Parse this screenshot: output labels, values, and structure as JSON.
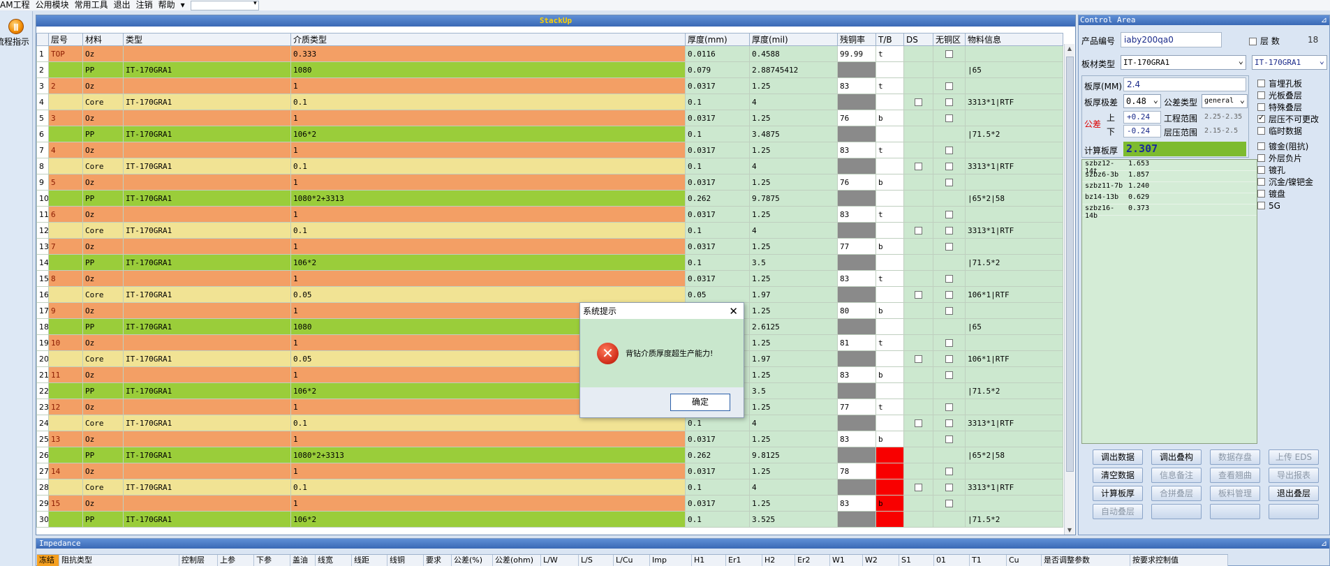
{
  "menubar": {
    "items": [
      "AM工程",
      "公用模块",
      "常用工具",
      "退出",
      "注销",
      "帮助"
    ],
    "combo_value": ""
  },
  "sidebar": {
    "flow_label": "流程指示"
  },
  "stackup": {
    "title": "StackUp",
    "columns": [
      "",
      "层号",
      "材料",
      "类型",
      "介质类型",
      "厚度(mm)",
      "厚度(mil)",
      "残铜率",
      "T/B",
      "DS",
      "无铜区",
      "物料信息"
    ],
    "rows": [
      {
        "n": "1",
        "layer": "TOP",
        "mat": "Oz",
        "type": "",
        "diel": "0.333",
        "mm": "0.0116",
        "mil": "0.4588",
        "res": "99.99",
        "res_gray": false,
        "tb": "t",
        "tb_red": false,
        "ds": false,
        "none": true,
        "info": "",
        "kind": "oz"
      },
      {
        "n": "2",
        "layer": "",
        "mat": "PP",
        "type": "IT-170GRA1",
        "diel": "1080",
        "mm": "0.079",
        "mil": "2.88745412",
        "res": "",
        "res_gray": true,
        "tb": "",
        "tb_red": false,
        "ds": false,
        "none": false,
        "info": "|65",
        "kind": "pp"
      },
      {
        "n": "3",
        "layer": "2",
        "mat": "Oz",
        "type": "",
        "diel": "1",
        "mm": "0.0317",
        "mil": "1.25",
        "res": "83",
        "res_gray": false,
        "tb": "t",
        "tb_red": false,
        "ds": false,
        "none": true,
        "info": "",
        "kind": "oz"
      },
      {
        "n": "4",
        "layer": "",
        "mat": "Core",
        "type": "IT-170GRA1",
        "diel": "0.1",
        "mm": "0.1",
        "mil": "4",
        "res": "",
        "res_gray": true,
        "tb": "",
        "tb_red": false,
        "ds": true,
        "none": true,
        "info": "3313*1|RTF",
        "kind": "core"
      },
      {
        "n": "5",
        "layer": "3",
        "mat": "Oz",
        "type": "",
        "diel": "1",
        "mm": "0.0317",
        "mil": "1.25",
        "res": "76",
        "res_gray": false,
        "tb": "b",
        "tb_red": false,
        "ds": false,
        "none": true,
        "info": "",
        "kind": "oz"
      },
      {
        "n": "6",
        "layer": "",
        "mat": "PP",
        "type": "IT-170GRA1",
        "diel": "106*2",
        "mm": "0.1",
        "mil": "3.4875",
        "res": "",
        "res_gray": true,
        "tb": "",
        "tb_red": false,
        "ds": false,
        "none": false,
        "info": "|71.5*2",
        "kind": "pp"
      },
      {
        "n": "7",
        "layer": "4",
        "mat": "Oz",
        "type": "",
        "diel": "1",
        "mm": "0.0317",
        "mil": "1.25",
        "res": "83",
        "res_gray": false,
        "tb": "t",
        "tb_red": false,
        "ds": false,
        "none": true,
        "info": "",
        "kind": "oz"
      },
      {
        "n": "8",
        "layer": "",
        "mat": "Core",
        "type": "IT-170GRA1",
        "diel": "0.1",
        "mm": "0.1",
        "mil": "4",
        "res": "",
        "res_gray": true,
        "tb": "",
        "tb_red": false,
        "ds": true,
        "none": true,
        "info": "3313*1|RTF",
        "kind": "core"
      },
      {
        "n": "9",
        "layer": "5",
        "mat": "Oz",
        "type": "",
        "diel": "1",
        "mm": "0.0317",
        "mil": "1.25",
        "res": "76",
        "res_gray": false,
        "tb": "b",
        "tb_red": false,
        "ds": false,
        "none": true,
        "info": "",
        "kind": "oz"
      },
      {
        "n": "10",
        "layer": "",
        "mat": "PP",
        "type": "IT-170GRA1",
        "diel": "1080*2+3313",
        "mm": "0.262",
        "mil": "9.7875",
        "res": "",
        "res_gray": true,
        "tb": "",
        "tb_red": false,
        "ds": false,
        "none": false,
        "info": "|65*2|58",
        "kind": "pp"
      },
      {
        "n": "11",
        "layer": "6",
        "mat": "Oz",
        "type": "",
        "diel": "1",
        "mm": "0.0317",
        "mil": "1.25",
        "res": "83",
        "res_gray": false,
        "tb": "t",
        "tb_red": false,
        "ds": false,
        "none": true,
        "info": "",
        "kind": "oz"
      },
      {
        "n": "12",
        "layer": "",
        "mat": "Core",
        "type": "IT-170GRA1",
        "diel": "0.1",
        "mm": "0.1",
        "mil": "4",
        "res": "",
        "res_gray": true,
        "tb": "",
        "tb_red": false,
        "ds": true,
        "none": true,
        "info": "3313*1|RTF",
        "kind": "core"
      },
      {
        "n": "13",
        "layer": "7",
        "mat": "Oz",
        "type": "",
        "diel": "1",
        "mm": "0.0317",
        "mil": "1.25",
        "res": "77",
        "res_gray": false,
        "tb": "b",
        "tb_red": false,
        "ds": false,
        "none": true,
        "info": "",
        "kind": "oz"
      },
      {
        "n": "14",
        "layer": "",
        "mat": "PP",
        "type": "IT-170GRA1",
        "diel": "106*2",
        "mm": "0.1",
        "mil": "3.5",
        "res": "",
        "res_gray": true,
        "tb": "",
        "tb_red": false,
        "ds": false,
        "none": false,
        "info": "|71.5*2",
        "kind": "pp"
      },
      {
        "n": "15",
        "layer": "8",
        "mat": "Oz",
        "type": "",
        "diel": "1",
        "mm": "0.0317",
        "mil": "1.25",
        "res": "83",
        "res_gray": false,
        "tb": "t",
        "tb_red": false,
        "ds": false,
        "none": true,
        "info": "",
        "kind": "oz"
      },
      {
        "n": "16",
        "layer": "",
        "mat": "Core",
        "type": "IT-170GRA1",
        "diel": "0.05",
        "mm": "0.05",
        "mil": "1.97",
        "res": "",
        "res_gray": true,
        "tb": "",
        "tb_red": false,
        "ds": true,
        "none": true,
        "info": "106*1|RTF",
        "kind": "core"
      },
      {
        "n": "17",
        "layer": "9",
        "mat": "Oz",
        "type": "",
        "diel": "1",
        "mm": "",
        "mil": "1.25",
        "res": "80",
        "res_gray": false,
        "tb": "b",
        "tb_red": false,
        "ds": false,
        "none": true,
        "info": "",
        "kind": "oz"
      },
      {
        "n": "18",
        "layer": "",
        "mat": "PP",
        "type": "IT-170GRA1",
        "diel": "1080",
        "mm": "",
        "mil": "2.6125",
        "res": "",
        "res_gray": true,
        "tb": "",
        "tb_red": false,
        "ds": false,
        "none": false,
        "info": "|65",
        "kind": "pp"
      },
      {
        "n": "19",
        "layer": "10",
        "mat": "Oz",
        "type": "",
        "diel": "1",
        "mm": "",
        "mil": "1.25",
        "res": "81",
        "res_gray": false,
        "tb": "t",
        "tb_red": false,
        "ds": false,
        "none": true,
        "info": "",
        "kind": "oz"
      },
      {
        "n": "20",
        "layer": "",
        "mat": "Core",
        "type": "IT-170GRA1",
        "diel": "0.05",
        "mm": "",
        "mil": "1.97",
        "res": "",
        "res_gray": true,
        "tb": "",
        "tb_red": false,
        "ds": true,
        "none": true,
        "info": "106*1|RTF",
        "kind": "core"
      },
      {
        "n": "21",
        "layer": "11",
        "mat": "Oz",
        "type": "",
        "diel": "1",
        "mm": "",
        "mil": "1.25",
        "res": "83",
        "res_gray": false,
        "tb": "b",
        "tb_red": false,
        "ds": false,
        "none": true,
        "info": "",
        "kind": "oz"
      },
      {
        "n": "22",
        "layer": "",
        "mat": "PP",
        "type": "IT-170GRA1",
        "diel": "106*2",
        "mm": "",
        "mil": "3.5",
        "res": "",
        "res_gray": true,
        "tb": "",
        "tb_red": false,
        "ds": false,
        "none": false,
        "info": "|71.5*2",
        "kind": "pp"
      },
      {
        "n": "23",
        "layer": "12",
        "mat": "Oz",
        "type": "",
        "diel": "1",
        "mm": "",
        "mil": "1.25",
        "res": "77",
        "res_gray": false,
        "tb": "t",
        "tb_red": false,
        "ds": false,
        "none": true,
        "info": "",
        "kind": "oz"
      },
      {
        "n": "24",
        "layer": "",
        "mat": "Core",
        "type": "IT-170GRA1",
        "diel": "0.1",
        "mm": "0.1",
        "mil": "4",
        "res": "",
        "res_gray": true,
        "tb": "",
        "tb_red": false,
        "ds": true,
        "none": true,
        "info": "3313*1|RTF",
        "kind": "core"
      },
      {
        "n": "25",
        "layer": "13",
        "mat": "Oz",
        "type": "",
        "diel": "1",
        "mm": "0.0317",
        "mil": "1.25",
        "res": "83",
        "res_gray": false,
        "tb": "b",
        "tb_red": false,
        "ds": false,
        "none": true,
        "info": "",
        "kind": "oz"
      },
      {
        "n": "26",
        "layer": "",
        "mat": "PP",
        "type": "IT-170GRA1",
        "diel": "1080*2+3313",
        "mm": "0.262",
        "mil": "9.8125",
        "res": "",
        "res_gray": true,
        "tb": "",
        "tb_red": true,
        "ds": false,
        "none": false,
        "info": "|65*2|58",
        "kind": "pp"
      },
      {
        "n": "27",
        "layer": "14",
        "mat": "Oz",
        "type": "",
        "diel": "1",
        "mm": "0.0317",
        "mil": "1.25",
        "res": "78",
        "res_gray": false,
        "tb": "",
        "tb_red": true,
        "ds": false,
        "none": true,
        "info": "",
        "kind": "oz"
      },
      {
        "n": "28",
        "layer": "",
        "mat": "Core",
        "type": "IT-170GRA1",
        "diel": "0.1",
        "mm": "0.1",
        "mil": "4",
        "res": "",
        "res_gray": true,
        "tb": "",
        "tb_red": true,
        "ds": true,
        "none": true,
        "info": "3313*1|RTF",
        "kind": "core"
      },
      {
        "n": "29",
        "layer": "15",
        "mat": "Oz",
        "type": "",
        "diel": "1",
        "mm": "0.0317",
        "mil": "1.25",
        "res": "83",
        "res_gray": false,
        "tb": "b",
        "tb_red": true,
        "ds": false,
        "none": true,
        "info": "",
        "kind": "oz"
      },
      {
        "n": "30",
        "layer": "",
        "mat": "PP",
        "type": "IT-170GRA1",
        "diel": "106*2",
        "mm": "0.1",
        "mil": "3.525",
        "res": "",
        "res_gray": true,
        "tb": "",
        "tb_red": true,
        "ds": false,
        "none": false,
        "info": "|71.5*2",
        "kind": "pp"
      }
    ]
  },
  "dialog": {
    "title": "系统提示",
    "message": "背钻介质厚度超生产能力!",
    "ok_label": "确定"
  },
  "control": {
    "title": "Control Area",
    "product_label": "产品编号",
    "product_value": "iaby200qa0",
    "layers_label": "层  数",
    "layers_value": "18",
    "board_type_label": "板材类型",
    "board_type_value": "IT-170GRA1",
    "board_type_value2": "IT-170GRA1",
    "thickness_label": "板厚(MM)",
    "thickness_value": "2.4",
    "tol_label": "板厚极差",
    "tol_value": "0.48",
    "tol_type_label": "公差类型",
    "tol_type_value": "general",
    "gongcha_label": "公差",
    "up_label": "上",
    "down_label": "下",
    "up_value": "+0.24",
    "down_value": "-0.24",
    "eng_range_label": "工程范围",
    "eng_range_value": "2.25-2.35",
    "press_range_label": "层压范围",
    "press_range_value": "2.15-2.5",
    "calc_label": "计算板厚",
    "calc_value": "2.307",
    "options": [
      {
        "label": "盲埋孔板",
        "checked": false
      },
      {
        "label": "光板叠层",
        "checked": false
      },
      {
        "label": "特殊叠层",
        "checked": false
      },
      {
        "label": "层压不可更改",
        "checked": true
      },
      {
        "label": "临时数据",
        "checked": false
      },
      {
        "label": "镀金(阻抗)",
        "checked": false
      },
      {
        "label": "外层负片",
        "checked": false
      },
      {
        "label": "镀孔",
        "checked": false
      },
      {
        "label": "沉金/镍钯金",
        "checked": false
      },
      {
        "label": "镀盘",
        "checked": false
      },
      {
        "label": "5G",
        "checked": false
      }
    ],
    "list": [
      {
        "name": "szbz12-14t",
        "val": "1.653"
      },
      {
        "name": "szbz6-3b",
        "val": "1.857"
      },
      {
        "name": "szbz11-7b",
        "val": "1.240"
      },
      {
        "name": "bz14-13b",
        "val": "0.629"
      },
      {
        "name": "szbz16-14b",
        "val": "0.373"
      }
    ],
    "buttons": [
      [
        "调出数据",
        "调出叠构",
        "数据存盘",
        "上传 EDS"
      ],
      [
        "清空数据",
        "信息备注",
        "查看翘曲",
        "导出报表"
      ],
      [
        "计算板厚",
        "合拼叠层",
        "板料管理",
        "退出叠层"
      ],
      [
        "自动叠层",
        "",
        "",
        ""
      ]
    ]
  },
  "impedance": {
    "title": "Impedance",
    "columns": [
      "冻结",
      "阻抗类型",
      "控制层",
      "上参",
      "下参",
      "盖油",
      "线宽",
      "线距",
      "线铜",
      "要求",
      "公差(%)",
      "公差(ohm)",
      "L/W",
      "L/S",
      "L/Cu",
      "Imp",
      "H1",
      "Er1",
      "H2",
      "Er2",
      "W1",
      "W2",
      "S1",
      "01",
      "T1",
      "Cu",
      "是否调整参数",
      "按要求控制值"
    ]
  }
}
